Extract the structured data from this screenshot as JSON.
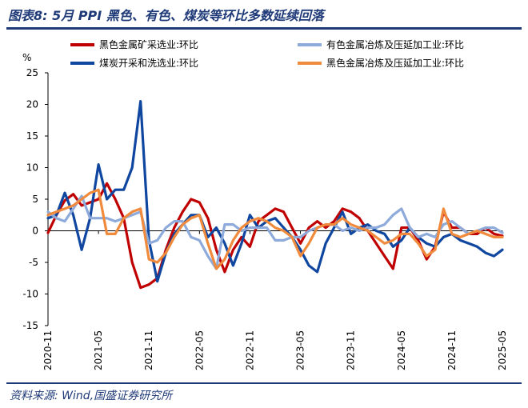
{
  "header": {
    "title": "图表8:  5月 PPI 黑色、有色、煤炭等环比多数延续回落"
  },
  "footer": {
    "source": "资料来源:  Wind,国盛证券研究所"
  },
  "chart_data": {
    "type": "line",
    "ylabel": "%",
    "ylim": [
      -15,
      25
    ],
    "yticks": [
      -15,
      -10,
      -5,
      0,
      5,
      10,
      15,
      20,
      25
    ],
    "xticks": [
      "2020-11",
      "2021-05",
      "2021-11",
      "2022-05",
      "2022-11",
      "2023-05",
      "2023-11",
      "2024-05",
      "2024-11",
      "2025-05"
    ],
    "x": [
      "2020-11",
      "2020-12",
      "2021-01",
      "2021-02",
      "2021-03",
      "2021-04",
      "2021-05",
      "2021-06",
      "2021-07",
      "2021-08",
      "2021-09",
      "2021-10",
      "2021-11",
      "2021-12",
      "2022-01",
      "2022-02",
      "2022-03",
      "2022-04",
      "2022-05",
      "2022-06",
      "2022-07",
      "2022-08",
      "2022-09",
      "2022-10",
      "2022-11",
      "2022-12",
      "2023-01",
      "2023-02",
      "2023-03",
      "2023-04",
      "2023-05",
      "2023-06",
      "2023-07",
      "2023-08",
      "2023-09",
      "2023-10",
      "2023-11",
      "2023-12",
      "2024-01",
      "2024-02",
      "2024-03",
      "2024-04",
      "2024-05",
      "2024-06",
      "2024-07",
      "2024-08",
      "2024-09",
      "2024-10",
      "2024-11",
      "2024-12",
      "2025-01",
      "2025-02",
      "2025-03",
      "2025-04",
      "2025-05"
    ],
    "legend_position": "top",
    "series": [
      {
        "name": "黑色金属矿采选业:环比",
        "color": "#c00000",
        "values": [
          -0.3,
          2.5,
          4.8,
          5.8,
          4.0,
          4.5,
          5.0,
          7.5,
          5.0,
          2.0,
          -5.0,
          -9.0,
          -8.5,
          -7.5,
          -3.0,
          0.5,
          3.0,
          5.0,
          4.5,
          2.0,
          -3.0,
          -6.5,
          -3.0,
          -1.0,
          -2.5,
          1.5,
          2.5,
          3.5,
          3.0,
          0.5,
          -2.0,
          0.5,
          1.5,
          0.5,
          1.5,
          3.5,
          3.0,
          2.0,
          0.0,
          -2.0,
          -4.0,
          -6.0,
          0.5,
          0.5,
          -1.5,
          -4.5,
          -2.5,
          3.0,
          0.5,
          0.5,
          -0.5,
          -0.5,
          0.5,
          -0.5,
          -0.8
        ]
      },
      {
        "name": "煤炭开采和洗选业:环比",
        "color": "#0f46a0",
        "values": [
          2.0,
          2.5,
          6.0,
          2.5,
          -3.0,
          2.0,
          10.5,
          5.0,
          6.5,
          6.5,
          10.0,
          20.5,
          -1.5,
          -8.0,
          -3.5,
          -0.5,
          1.0,
          2.5,
          2.5,
          -1.0,
          0.5,
          -2.0,
          -5.5,
          -2.0,
          2.5,
          0.5,
          1.5,
          2.0,
          0.5,
          -1.0,
          -3.0,
          -5.5,
          -6.5,
          -2.0,
          0.5,
          3.0,
          -0.5,
          0.5,
          1.0,
          0.0,
          -0.5,
          -2.5,
          -1.5,
          0.5,
          -1.0,
          -2.0,
          -2.5,
          -1.0,
          -0.5,
          -1.5,
          -2.0,
          -2.5,
          -3.5,
          -4.0,
          -3.0
        ]
      },
      {
        "name": "有色金属冶炼及压延加工业:环比",
        "color": "#8eaadb",
        "values": [
          3.0,
          2.0,
          1.5,
          3.5,
          5.5,
          2.0,
          2.0,
          2.0,
          1.5,
          2.0,
          2.5,
          3.0,
          -2.0,
          -1.5,
          0.5,
          1.5,
          1.5,
          -1.0,
          -1.5,
          -4.0,
          -6.0,
          1.0,
          1.0,
          0.0,
          0.5,
          0.5,
          0.5,
          -1.5,
          -1.5,
          -1.0,
          -1.0,
          0.0,
          0.5,
          1.0,
          1.0,
          0.0,
          0.5,
          0.0,
          0.5,
          0.5,
          1.0,
          2.5,
          3.5,
          0.5,
          -1.0,
          -0.5,
          -1.0,
          1.0,
          1.5,
          0.5,
          -0.5,
          0.0,
          0.5,
          0.5,
          -0.3
        ]
      },
      {
        "name": "黑色金属冶炼及压延加工业:环比",
        "color": "#f08a3c",
        "values": [
          2.5,
          3.0,
          3.5,
          4.0,
          5.0,
          6.0,
          6.5,
          -0.5,
          -0.5,
          2.0,
          3.0,
          3.5,
          -4.5,
          -5.0,
          -3.5,
          -1.0,
          1.0,
          2.0,
          2.5,
          -2.0,
          -6.0,
          -4.5,
          -1.5,
          0.5,
          1.5,
          2.0,
          1.5,
          0.5,
          0.0,
          -1.0,
          -4.0,
          -2.0,
          0.5,
          1.0,
          1.0,
          2.0,
          1.0,
          0.5,
          0.0,
          -1.0,
          -2.0,
          -1.5,
          -0.5,
          -0.5,
          -2.0,
          -4.0,
          -3.0,
          3.5,
          -0.5,
          -1.0,
          -0.5,
          0.0,
          -0.5,
          -1.0,
          -1.0
        ]
      }
    ]
  }
}
